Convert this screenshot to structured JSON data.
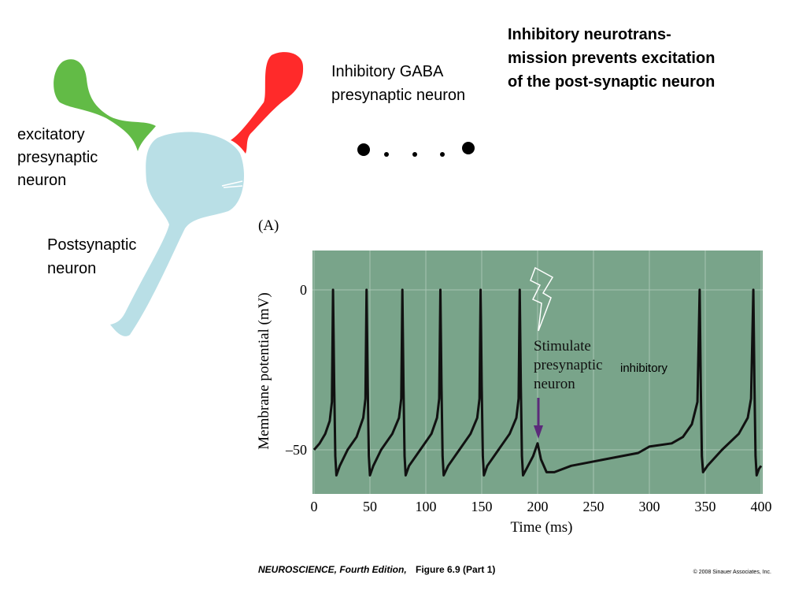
{
  "diagram": {
    "heading": [
      "Inhibitory neurotrans-",
      "mission prevents excitation",
      "of the post-synaptic neuron"
    ],
    "labels": {
      "excitatory": [
        "excitatory",
        "presynaptic",
        "neuron"
      ],
      "postsynaptic": [
        "Postsynaptic",
        "neuron"
      ],
      "inhibitory": [
        "Inhibitory GABA",
        "presynaptic neuron"
      ]
    }
  },
  "chart_data": {
    "type": "line",
    "panel_label": "(A)",
    "xlabel": "Time (ms)",
    "ylabel": "Membrane potential (mV)",
    "x": [
      0,
      5,
      10,
      14,
      16,
      17,
      18,
      19,
      20,
      23,
      30,
      38,
      44,
      46,
      47,
      48,
      49,
      50,
      53,
      60,
      70,
      76,
      78,
      79,
      80,
      81,
      82,
      85,
      95,
      105,
      110,
      112,
      113,
      114,
      115,
      116,
      120,
      130,
      140,
      146,
      148,
      149,
      150,
      151,
      152,
      155,
      165,
      175,
      181,
      183,
      184,
      185,
      186,
      187,
      190,
      196,
      200,
      203,
      208,
      215,
      230,
      260,
      290,
      300,
      320,
      330,
      338,
      343,
      345,
      346,
      347,
      348,
      352,
      365,
      380,
      388,
      391,
      393,
      394,
      395,
      396,
      398,
      400
    ],
    "values": [
      -50,
      -48,
      -45,
      -41,
      -35,
      0,
      -30,
      -52,
      -58,
      -55,
      -50,
      -46,
      -40,
      -34,
      0,
      -30,
      -52,
      -58,
      -55,
      -50,
      -45,
      -40,
      -34,
      0,
      -30,
      -52,
      -58,
      -55,
      -50,
      -45,
      -40,
      -34,
      0,
      -30,
      -52,
      -58,
      -55,
      -50,
      -45,
      -40,
      -34,
      0,
      -30,
      -52,
      -58,
      -55,
      -50,
      -45,
      -40,
      -34,
      0,
      -30,
      -52,
      -58,
      -56,
      -52,
      -48,
      -53,
      -57,
      -57,
      -55,
      -53,
      -51,
      -49,
      -48,
      -46,
      -42,
      -35,
      0,
      -30,
      -52,
      -57,
      -55,
      -50,
      -45,
      -40,
      -34,
      0,
      -30,
      -52,
      -58,
      -56,
      -55
    ],
    "color": "#111111",
    "plot_background": "#79a48a",
    "grid_color": "#a8c5b3",
    "xlim": [
      0,
      400
    ],
    "ylim": [
      -63.8,
      12.3
    ],
    "xticks": [
      0,
      50,
      100,
      150,
      200,
      250,
      300,
      350,
      400
    ],
    "yticks": [
      0,
      {
        "value": -50,
        "label": "–50"
      }
    ],
    "grid": true,
    "annotation": [
      "Stimulate",
      "presynaptic",
      "neuron"
    ],
    "annotation_overlay": "inhibitory"
  },
  "footer": {
    "caption_italic": "NEUROSCIENCE, Fourth Edition,",
    "caption_rest": " Figure 6.9 (Part 1)",
    "copyright": "© 2008 Sinauer Associates, Inc."
  }
}
